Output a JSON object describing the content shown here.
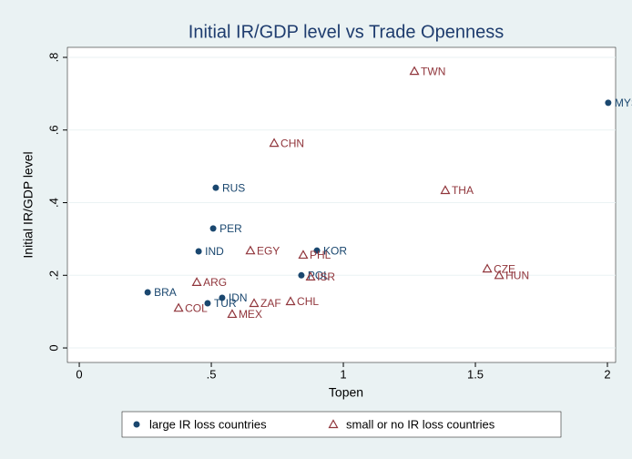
{
  "chart_data": {
    "type": "scatter",
    "title": "Initial IR/GDP level vs Trade Openness",
    "x_label": "Topen",
    "y_label": "Initial IR/GDP level",
    "xlim": [
      -0.045,
      2.031
    ],
    "ylim": [
      -0.04,
      0.8276
    ],
    "xticks": [
      0,
      {
        "value": 0.5,
        "label": ".5"
      },
      1,
      1.5,
      2
    ],
    "yticks": [
      0,
      {
        "value": 0.2,
        "label": ".2"
      },
      {
        "value": 0.4,
        "label": ".4"
      },
      {
        "value": 0.6,
        "label": ".6"
      },
      {
        "value": 0.8,
        "label": ".8"
      }
    ],
    "legend": "bottom",
    "grid": true,
    "series": [
      {
        "name": "large IR loss countries",
        "color": "#1a476f",
        "marker": "circle",
        "labels": [
          "BRA",
          "TUR",
          "IDN",
          "IND",
          "PER",
          "RUS",
          "KOR",
          "POL",
          "MYS"
        ],
        "x": [
          0.259,
          0.486,
          0.541,
          0.452,
          0.507,
          0.517,
          0.9,
          0.841,
          2.003
        ],
        "values": [
          0.153,
          0.123,
          0.138,
          0.266,
          0.329,
          0.441,
          0.268,
          0.2,
          0.675
        ]
      },
      {
        "name": "small or no IR loss countries",
        "color": "#90353b",
        "marker": "triangle",
        "labels": [
          "TWN",
          "CHN",
          "THA",
          "EGY",
          "PHL",
          "ISR",
          "CZE",
          "HUN",
          "ARG",
          "COL",
          "ZAF",
          "CHL",
          "MEX"
        ],
        "x": [
          1.269,
          0.738,
          1.386,
          0.648,
          0.848,
          0.876,
          1.545,
          1.59,
          0.445,
          0.376,
          0.662,
          0.8,
          0.579
        ],
        "values": [
          0.762,
          0.564,
          0.434,
          0.268,
          0.256,
          0.196,
          0.218,
          0.2,
          0.181,
          0.11,
          0.123,
          0.128,
          0.093
        ]
      }
    ]
  }
}
